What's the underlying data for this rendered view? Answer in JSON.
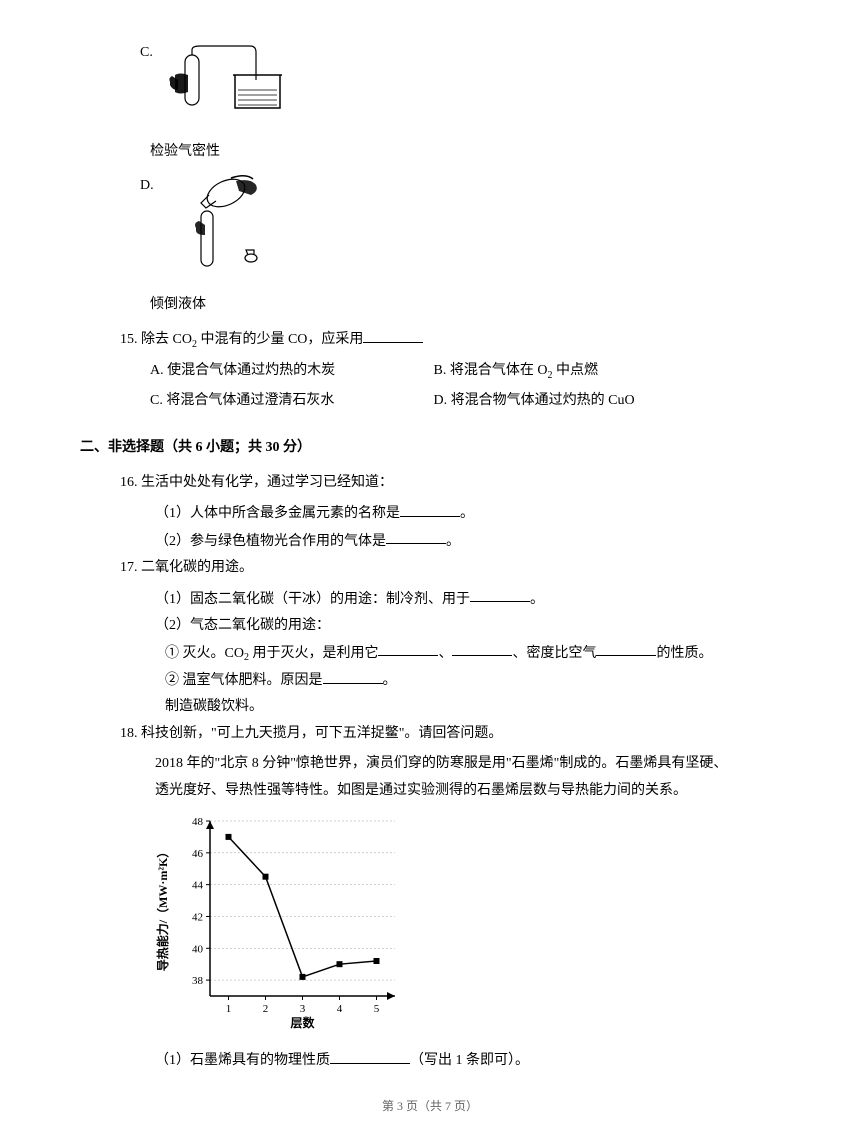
{
  "optionC": {
    "label": "C.",
    "caption": "检验气密性"
  },
  "optionD": {
    "label": "D.",
    "caption": "倾倒液体"
  },
  "q15": {
    "number": "15.",
    "stem_pre": "除去 CO",
    "stem_sub1": "2",
    "stem_mid": " 中混有的少量 CO，应采用",
    "optA_pre": "A. 使混合气体通过灼热的木炭",
    "optB_pre": "B. 将混合气体在 O",
    "optB_sub": "2",
    "optB_post": " 中点燃",
    "optC": "C. 将混合气体通过澄清石灰水",
    "optD": "D. 将混合物气体通过灼热的 CuO"
  },
  "section2": "二、非选择题（共 6 小题；共 30 分）",
  "q16": {
    "number": "16.",
    "stem": "生活中处处有化学，通过学习已经知道：",
    "part1": "（1）人体中所含最多金属元素的名称是",
    "part1_post": "。",
    "part2": "（2）参与绿色植物光合作用的气体是",
    "part2_post": "。"
  },
  "q17": {
    "number": "17.",
    "stem": "二氧化碳的用途。",
    "part1": "（1）固态二氧化碳（干冰）的用途：制冷剂、用于",
    "part1_post": "。",
    "part2": "（2）气态二氧化碳的用途：",
    "circle1_pre": "① 灭火。CO",
    "circle1_sub": "2",
    "circle1_mid1": " 用于灭火，是利用它",
    "circle1_sep1": "、",
    "circle1_sep2": "、密度比空气",
    "circle1_post": "的性质。",
    "circle2": "② 温室气体肥料。原因是",
    "circle2_post": "。",
    "extra": "制造碳酸饮料。"
  },
  "q18": {
    "number": "18.",
    "stem": "科技创新，\"可上九天揽月，可下五洋捉鳖\"。请回答问题。",
    "para1": "2018 年的\"北京 8 分钟\"惊艳世界，演员们穿的防寒服是用\"石墨烯\"制成的。石墨烯具有坚硬、",
    "para2": "透光度好、导热性强等特性。如图是通过实验测得的石墨烯层数与导热能力间的关系。",
    "part1_pre": "（1）石墨烯具有的物理性质",
    "part1_post": "（写出 1 条即可）。"
  },
  "chart": {
    "ylabel": "导热能力/（MW·m²K）",
    "xlabel": "层数",
    "y_ticks": [
      38,
      40,
      42,
      44,
      46,
      48
    ],
    "x_ticks": [
      1,
      2,
      3,
      4,
      5
    ],
    "values": [
      47,
      44.5,
      38.2,
      39,
      39.2
    ],
    "ylim": [
      37,
      48
    ],
    "line_color": "#000000",
    "axis_color": "#000000",
    "grid_color": "#888888",
    "bg_color": "#ffffff",
    "font_size": 11
  },
  "footer": "第 3 页（共 7 页）"
}
